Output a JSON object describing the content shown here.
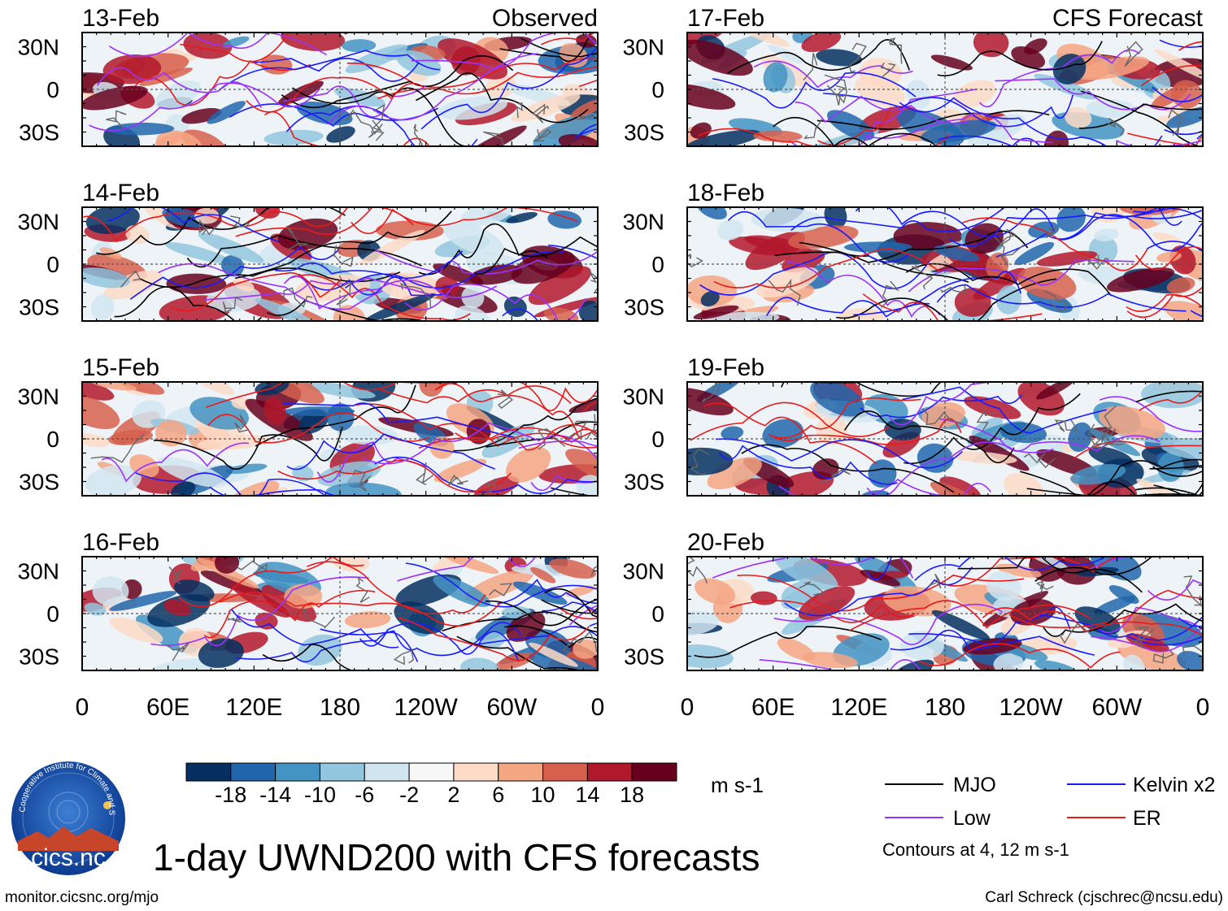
{
  "title": "1-day UWND200 with CFS forecasts",
  "footer": {
    "url": "monitor.cicsnc.org/mjo",
    "credit": "Carl Schreck (cjschrec@ncsu.edu)"
  },
  "logo": {
    "text": "cics.nc",
    "ring_text": "Cooperative Institute for Climate and Satellites"
  },
  "chart_data": {
    "type": "heatmap",
    "variable": "200-hPa zonal wind anomaly (UWND200)",
    "columns": [
      {
        "label": "Observed",
        "panels": [
          {
            "date": "13-Feb"
          },
          {
            "date": "14-Feb"
          },
          {
            "date": "15-Feb"
          },
          {
            "date": "16-Feb"
          }
        ]
      },
      {
        "label": "CFS Forecast",
        "panels": [
          {
            "date": "17-Feb"
          },
          {
            "date": "18-Feb"
          },
          {
            "date": "19-Feb"
          },
          {
            "date": "20-Feb"
          }
        ]
      }
    ],
    "y_ticks": [
      "30N",
      "0",
      "30S"
    ],
    "y_values": [
      30,
      0,
      -30
    ],
    "ylim": [
      -40,
      40
    ],
    "x_ticks": [
      "0",
      "60E",
      "120E",
      "180",
      "120W",
      "60W",
      "0"
    ],
    "x_values": [
      0,
      60,
      120,
      180,
      240,
      300,
      360
    ],
    "xlim": [
      0,
      360
    ],
    "colorbar": {
      "units": "m s-1",
      "labels": [
        "-18",
        "-14",
        "-10",
        "-6",
        "-2",
        "2",
        "6",
        "10",
        "14",
        "18"
      ],
      "colors": [
        "#053061",
        "#2166ac",
        "#4393c3",
        "#92c5de",
        "#d1e5f0",
        "#f7f7f7",
        "#fddbc7",
        "#f4a582",
        "#d6604d",
        "#b2182b",
        "#67001f"
      ]
    },
    "legend": [
      {
        "name": "MJO",
        "color": "#000000"
      },
      {
        "name": "Kelvin x2",
        "color": "#1a1aff"
      },
      {
        "name": "Low",
        "color": "#9b30ff"
      },
      {
        "name": "ER",
        "color": "#e81a1a"
      }
    ],
    "contour_note": "Contours at 4, 12 m s-1"
  }
}
